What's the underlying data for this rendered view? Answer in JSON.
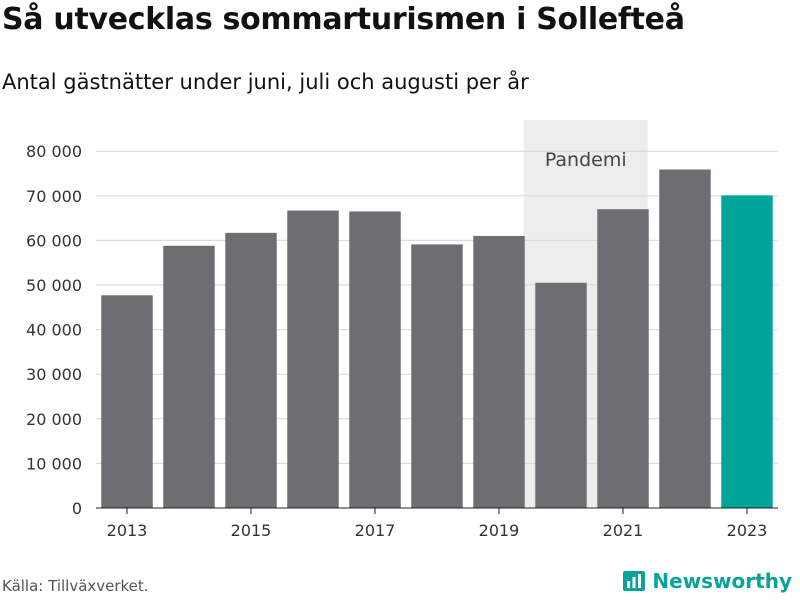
{
  "header": {
    "title": "Så utvecklas sommarturismen i Sollefteå",
    "subtitle": "Antal gästnätter under juni, juli och augusti per år"
  },
  "footer": {
    "source": "Källa: Tillväxverket.",
    "brand": "Newsworthy",
    "brand_icon": "bar-chart-logo-icon"
  },
  "colors": {
    "bar": "#6e6d72",
    "highlight": "#00a39a",
    "band": "#ededed",
    "grid": "#d6d6d6"
  },
  "chart_data": {
    "type": "bar",
    "categories": [
      "2013",
      "2014",
      "2015",
      "2016",
      "2017",
      "2018",
      "2019",
      "2020",
      "2021",
      "2022",
      "2023"
    ],
    "values": [
      47700,
      58800,
      61700,
      66700,
      66500,
      59100,
      61000,
      50500,
      67000,
      75900,
      70100
    ],
    "highlight_category": "2023",
    "x_tick_labels": [
      "2013",
      "2015",
      "2017",
      "2019",
      "2021",
      "2023"
    ],
    "y_ticks": [
      0,
      10000,
      20000,
      30000,
      40000,
      50000,
      60000,
      70000,
      80000
    ],
    "y_tick_labels": [
      "0",
      "10 000",
      "20 000",
      "30 000",
      "40 000",
      "50 000",
      "60 000",
      "70 000",
      "80 000"
    ],
    "ylim": [
      0,
      87000
    ],
    "grid": true,
    "annotation": {
      "label": "Pandemi",
      "from": "2020",
      "to": "2021"
    }
  }
}
